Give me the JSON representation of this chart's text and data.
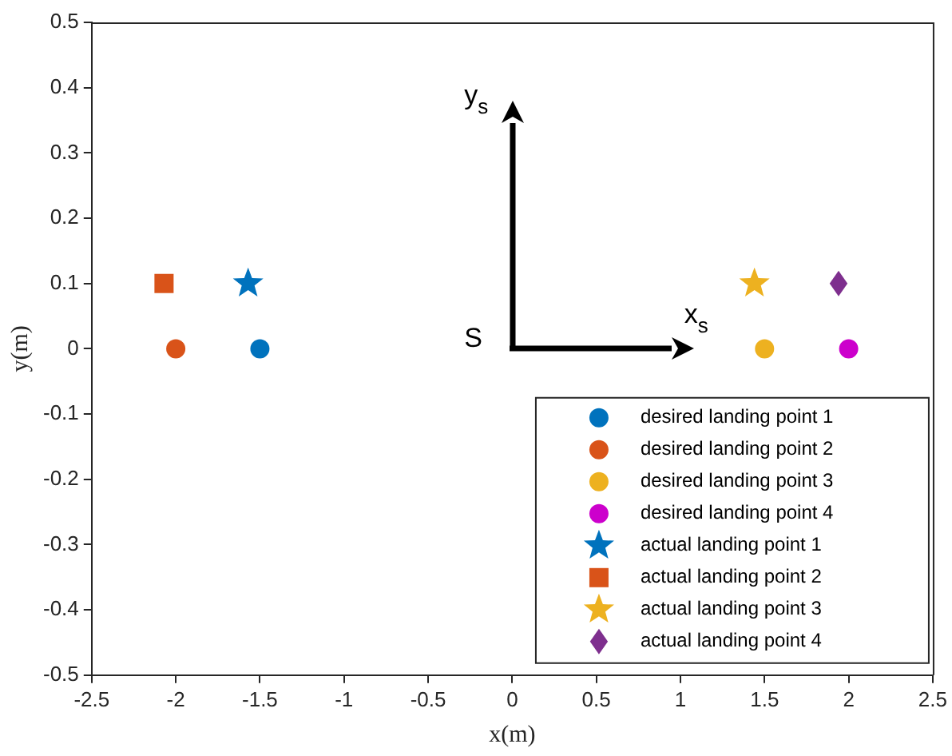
{
  "chart_data": {
    "type": "scatter",
    "xlabel": "x(m)",
    "ylabel": "y(m)",
    "xlim": [
      -2.5,
      2.5
    ],
    "xticks": [
      -2.5,
      -2,
      -1.5,
      -1,
      -0.5,
      0,
      0.5,
      1,
      1.5,
      2,
      2.5
    ],
    "ylim": [
      -0.5,
      0.5
    ],
    "yticks": [
      -0.5,
      -0.4,
      -0.3,
      -0.2,
      -0.1,
      0,
      0.1,
      0.2,
      0.3,
      0.4,
      0.5
    ],
    "grid": false,
    "legend": "bottom right",
    "series": [
      {
        "name": "desired landing point 1",
        "color": "#0072bd",
        "marker": "circle",
        "x": [
          -1.5
        ],
        "values": [
          0
        ]
      },
      {
        "name": "desired landing point 2",
        "color": "#d95319",
        "marker": "circle",
        "x": [
          -2
        ],
        "values": [
          0
        ]
      },
      {
        "name": "desired landing point 3",
        "color": "#edb120",
        "marker": "circle",
        "x": [
          1.5
        ],
        "values": [
          0
        ]
      },
      {
        "name": "desired landing point 4",
        "color": "#cc00cc",
        "marker": "circle",
        "x": [
          2
        ],
        "values": [
          0
        ]
      },
      {
        "name": "actual landing point 1",
        "color": "#0072bd",
        "marker": "star",
        "x": [
          -1.57
        ],
        "values": [
          0.1
        ]
      },
      {
        "name": "actual landing point 2",
        "color": "#d95319",
        "marker": "square",
        "x": [
          -2.07
        ],
        "values": [
          0.1
        ]
      },
      {
        "name": "actual landing point 3",
        "color": "#edb120",
        "marker": "star",
        "x": [
          1.44
        ],
        "values": [
          0.1
        ]
      },
      {
        "name": "actual landing point 4",
        "color": "#7e2f8e",
        "marker": "diamond",
        "x": [
          1.94
        ],
        "values": [
          0.1
        ]
      }
    ],
    "annotations": [
      "S",
      "x$_{s}$",
      "y$_{s}$"
    ]
  }
}
